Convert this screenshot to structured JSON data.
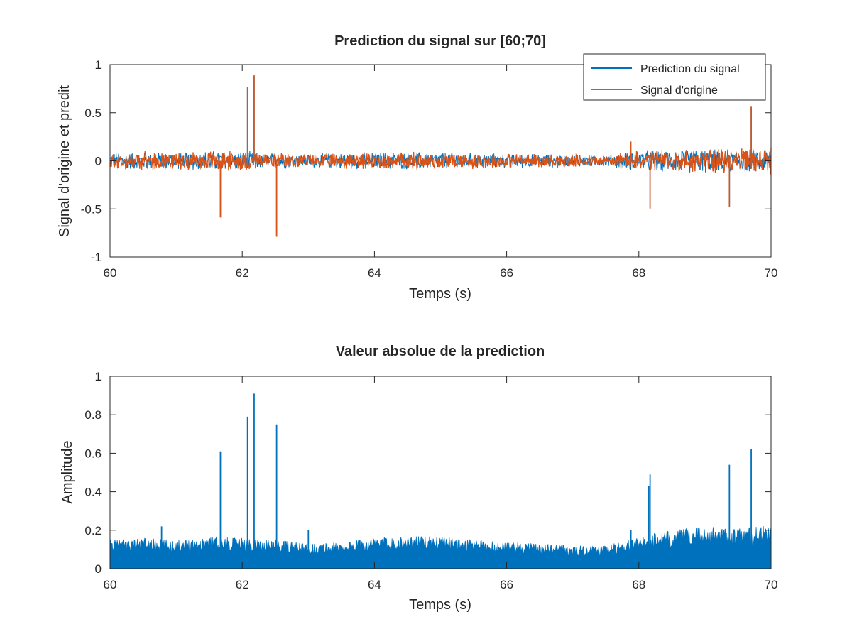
{
  "chart_data": [
    {
      "type": "line",
      "title": "Prediction du signal sur [60;70]",
      "xlabel": "Temps (s)",
      "ylabel": "Signal d'origine et predit",
      "xlim": [
        60,
        70
      ],
      "ylim": [
        -1,
        1
      ],
      "xticks": [
        "60",
        "62",
        "64",
        "66",
        "68",
        "70"
      ],
      "yticks": [
        "-1",
        "-0.5",
        "0",
        "0.5",
        "1"
      ],
      "legend_position": "top-right",
      "series": [
        {
          "name": "Prediction du signal",
          "color": "#0072bd",
          "x": [
            60,
            61.5,
            61.67,
            62.08,
            62.18,
            62.52,
            63.0,
            64.0,
            65.0,
            66.0,
            67.0,
            68.17,
            68.5,
            69.37,
            69.7,
            70
          ],
          "y": [
            0.0,
            0.02,
            -0.58,
            0.76,
            0.88,
            -0.78,
            0.02,
            0.0,
            0.0,
            0.0,
            0.0,
            -0.49,
            0.03,
            -0.47,
            0.56,
            0.0
          ]
        },
        {
          "name": "Signal d'origine",
          "color": "#d95319",
          "x": [
            60,
            61.5,
            61.67,
            62.08,
            62.18,
            62.52,
            63.0,
            64.0,
            65.0,
            66.0,
            67.0,
            67.88,
            68.17,
            68.5,
            69.37,
            69.7,
            70
          ],
          "y": [
            0.0,
            0.02,
            -0.59,
            0.77,
            0.89,
            -0.79,
            0.02,
            0.0,
            0.0,
            0.0,
            0.0,
            0.2,
            -0.5,
            0.03,
            -0.48,
            0.57,
            0.0
          ]
        }
      ],
      "noise_envelope": {
        "x": [
          60,
          60.5,
          61,
          61.5,
          62,
          62.5,
          63,
          63.5,
          64,
          64.5,
          65,
          65.5,
          66,
          66.5,
          67,
          67.5,
          68,
          68.5,
          69,
          69.5,
          70
        ],
        "amp": [
          0.1,
          0.1,
          0.09,
          0.12,
          0.11,
          0.09,
          0.08,
          0.09,
          0.1,
          0.1,
          0.1,
          0.09,
          0.08,
          0.08,
          0.07,
          0.07,
          0.12,
          0.13,
          0.14,
          0.13,
          0.15
        ]
      }
    },
    {
      "type": "bar",
      "title": "Valeur absolue de la prediction",
      "xlabel": "Temps (s)",
      "ylabel": "Amplitude",
      "xlim": [
        60,
        70
      ],
      "ylim": [
        0,
        1
      ],
      "xticks": [
        "60",
        "62",
        "64",
        "66",
        "68",
        "70"
      ],
      "yticks": [
        "0",
        "0.2",
        "0.4",
        "0.6",
        "0.8",
        "1"
      ],
      "series": [
        {
          "color": "#0072bd",
          "x": [
            60.78,
            61.67,
            62.08,
            62.18,
            62.52,
            63.0,
            67.88,
            68.15,
            68.17,
            69.37,
            69.7
          ],
          "y": [
            0.22,
            0.61,
            0.79,
            0.91,
            0.75,
            0.2,
            0.2,
            0.43,
            0.49,
            0.54,
            0.62
          ]
        }
      ],
      "baseline_envelope": {
        "x": [
          60,
          60.5,
          61,
          61.5,
          62,
          62.5,
          63,
          63.5,
          64,
          64.5,
          65,
          65.5,
          66,
          66.5,
          67,
          67.5,
          68,
          68.5,
          69,
          69.5,
          70
        ],
        "max": [
          0.15,
          0.16,
          0.15,
          0.17,
          0.16,
          0.15,
          0.13,
          0.14,
          0.16,
          0.17,
          0.17,
          0.15,
          0.14,
          0.13,
          0.12,
          0.12,
          0.17,
          0.2,
          0.22,
          0.21,
          0.23
        ]
      }
    }
  ]
}
